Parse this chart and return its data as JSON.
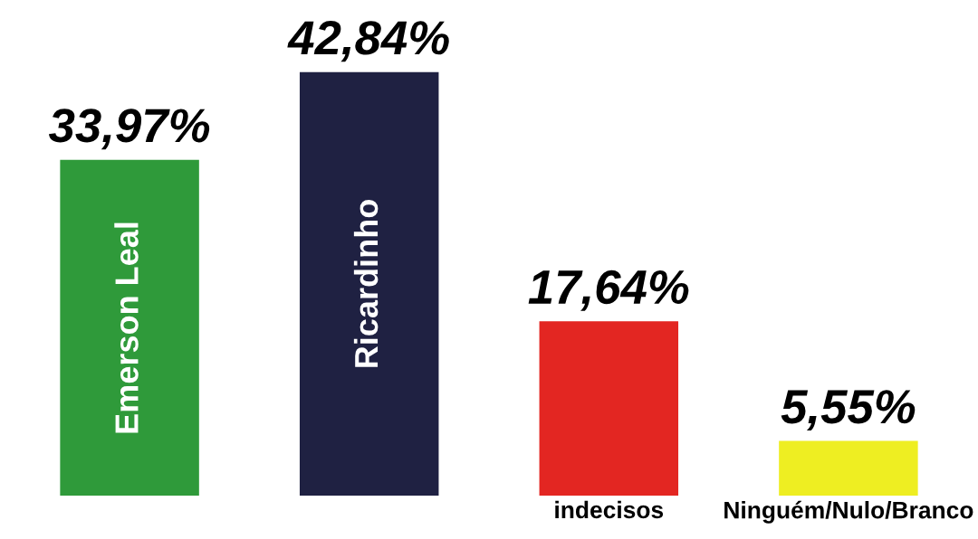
{
  "chart_data": {
    "type": "bar",
    "categories": [
      "Emerson Leal",
      "Ricardinho",
      "indecisos",
      "Ninguém/Nulo/Branco"
    ],
    "values": [
      33.97,
      42.84,
      17.64,
      5.55
    ],
    "colors": [
      "#2f9a3a",
      "#1f2142",
      "#e32622",
      "#eeee22"
    ],
    "value_labels": [
      "33,97%",
      "42,84%",
      "17,64%",
      "5,55%"
    ],
    "tick_labels": false
  }
}
